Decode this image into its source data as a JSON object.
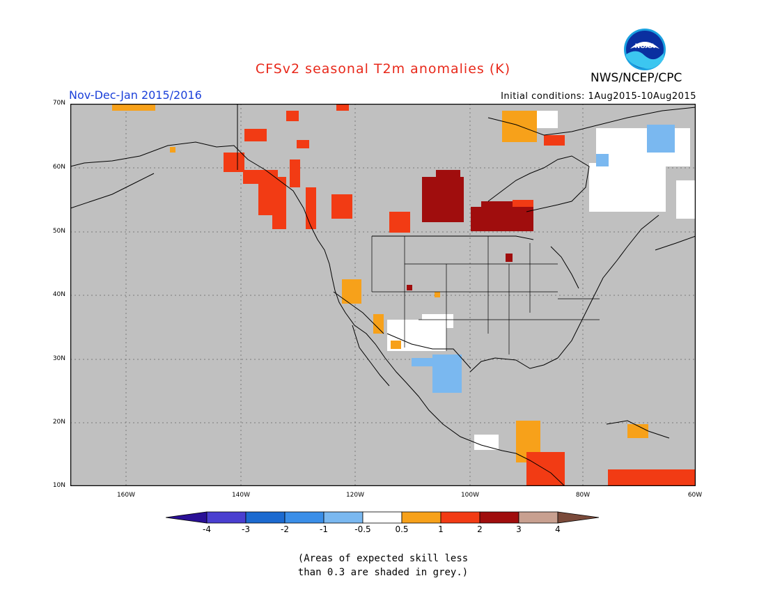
{
  "title": "CFSv2 seasonal T2m anomalies (K)",
  "period": "Nov-Dec-Jan 2015/2016",
  "initial_conditions": "Initial conditions: 1Aug2015-10Aug2015",
  "agency": "NWS/NCEP/CPC",
  "logo_text": "NOAA",
  "lat_labels": [
    "70N",
    "60N",
    "50N",
    "40N",
    "30N",
    "20N",
    "10N"
  ],
  "lon_labels": [
    "160W",
    "140W",
    "120W",
    "100W",
    "80W",
    "60W"
  ],
  "colorbar": {
    "labels": [
      "-4",
      "-3",
      "-2",
      "-1",
      "-0.5",
      "0.5",
      "1",
      "2",
      "3",
      "4"
    ],
    "colors": [
      "#2a1096",
      "#4a3fd0",
      "#1c6ad0",
      "#3a8ee8",
      "#7ab8f0",
      "#ffffff",
      "#f7a11a",
      "#f23b14",
      "#a00d0d",
      "#c8a090",
      "#7a4a3a"
    ]
  },
  "note_line1": "(Areas of expected skill less",
  "note_line2": "than 0.3 are shaded in grey.)",
  "colors": {
    "title": "#e8281a",
    "period": "#1a3fd9",
    "grey_shade": "#c0c0c0"
  }
}
